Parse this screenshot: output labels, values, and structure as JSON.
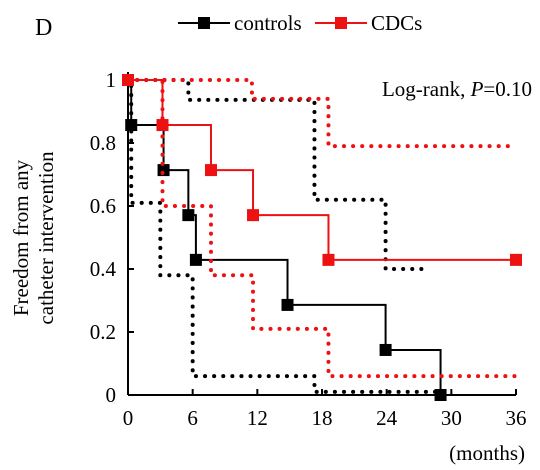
{
  "chart_data": {
    "type": "step",
    "panel_label": "D",
    "y_label": [
      "Freedom from any",
      "catheter intervention"
    ],
    "x_label": "(months)",
    "annotation": [
      "Log-rank, ",
      "P",
      "=0.10"
    ],
    "xlim": [
      0,
      36
    ],
    "ylim": [
      0,
      1
    ],
    "xticks": [
      0,
      6,
      12,
      18,
      24,
      30,
      36
    ],
    "yticks": [
      0,
      0.2,
      0.4,
      0.6,
      0.8,
      1
    ],
    "series": [
      {
        "name": "controls",
        "color": "#000000",
        "x": [
          0,
          0.3,
          3.3,
          5.6,
          6.3,
          14.8,
          23.9,
          29.0
        ],
        "values": [
          1,
          0.857,
          0.714,
          0.571,
          0.429,
          0.286,
          0.143,
          0
        ],
        "ci_upper": {
          "x": [
            0,
            5.6,
            17.3,
            23.9,
            27.7
          ],
          "values": [
            1,
            0.937,
            0.62,
            0.4,
            0.4
          ]
        },
        "ci_lower": {
          "x": [
            0,
            0.3,
            3.0,
            6.0,
            17.3,
            29.0
          ],
          "values": [
            1,
            0.61,
            0.38,
            0.06,
            0.01,
            0.01
          ]
        }
      },
      {
        "name": "CDCs",
        "color": "#ee1111",
        "x": [
          0,
          3.2,
          7.7,
          11.6,
          18.6,
          36
        ],
        "values": [
          1,
          0.857,
          0.714,
          0.571,
          0.429,
          0.429
        ],
        "ci_upper": {
          "x": [
            0,
            11.5,
            18.6,
            36
          ],
          "values": [
            1,
            0.94,
            0.79,
            0.79
          ]
        },
        "ci_lower": {
          "x": [
            0,
            3.2,
            7.7,
            11.6,
            18.6,
            36
          ],
          "values": [
            1,
            0.6,
            0.38,
            0.21,
            0.06,
            0.06
          ]
        }
      }
    ]
  }
}
